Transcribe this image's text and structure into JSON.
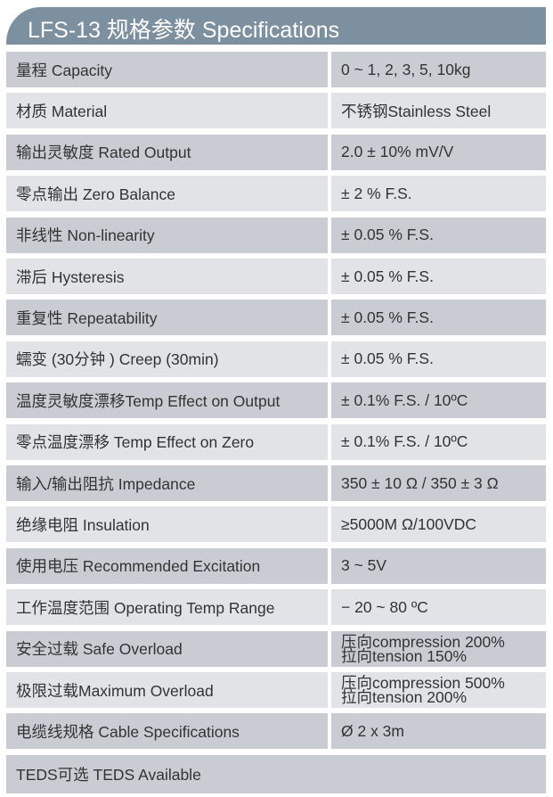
{
  "title": "LFS-13 规格参数 Specifications",
  "rows": [
    {
      "label": "量程 Capacity",
      "value": "0 ~ 1, 2, 3, 5, 10kg"
    },
    {
      "label": "材质 Material",
      "value": "不锈钢Stainless Steel"
    },
    {
      "label": "输出灵敏度 Rated Output",
      "value": "2.0 ± 10% mV/V"
    },
    {
      "label": "零点输出  Zero Balance",
      "value": " ± 2 % F.S."
    },
    {
      "label": "非线性 Non-linearity",
      "value": " ± 0.05 % F.S."
    },
    {
      "label": "滞后 Hysteresis",
      "value": " ± 0.05 % F.S."
    },
    {
      "label": "重复性 Repeatability",
      "value": " ± 0.05 % F.S."
    },
    {
      "label": "蠕变 (30分钟 ) Creep (30min)",
      "value": " ± 0.05 % F.S."
    },
    {
      "label": "温度灵敏度漂移Temp Effect on Output",
      "value": " ± 0.1% F.S. / 10ºC"
    },
    {
      "label": "零点温度漂移 Temp Effect on Zero",
      "value": " ± 0.1% F.S. / 10ºC"
    },
    {
      "label": "输入/输出阻抗 Impedance",
      "value": "350 ± 10 Ω  / 350 ± 3 Ω"
    },
    {
      "label": "绝缘电阻  Insulation",
      "value": "≥5000M Ω/100VDC"
    },
    {
      "label": "使用电压 Recommended Excitation",
      "value": "3 ~ 5V"
    },
    {
      "label": "工作温度范围 Operating Temp  Range",
      "value": "− 20 ~ 80 ºC"
    },
    {
      "label": "安全过载 Safe Overload",
      "value": "压向compression 200%",
      "value2": "拉向tension 150%"
    },
    {
      "label": "极限过载Maximum Overload",
      "value": "压向compression 500%",
      "value2": "拉向tension 200%"
    },
    {
      "label": "电缆线规格 Cable Specifications",
      "value": "Ø 2 x 3m"
    }
  ],
  "footer": "TEDS可选 TEDS Available"
}
